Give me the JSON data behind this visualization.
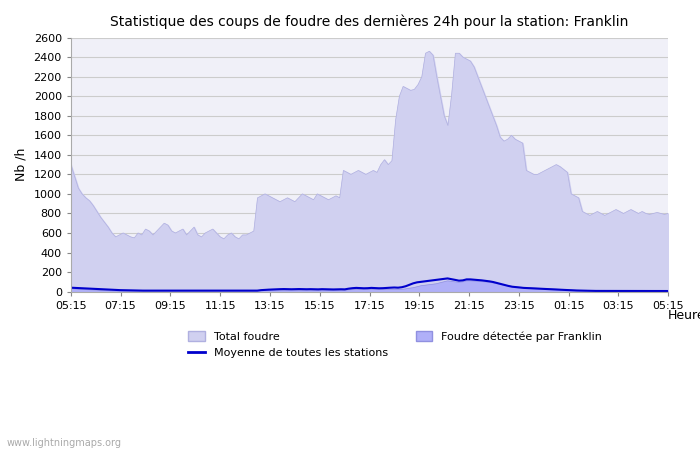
{
  "title": "Statistique des coups de foudre des dernières 24h pour la station: Franklin",
  "ylabel": "Nb /h",
  "xlabel": "Heure",
  "watermark": "www.lightningmaps.org",
  "ylim": [
    0,
    2600
  ],
  "yticks": [
    0,
    200,
    400,
    600,
    800,
    1000,
    1200,
    1400,
    1600,
    1800,
    2000,
    2200,
    2400,
    2600
  ],
  "xtick_labels": [
    "05:15",
    "07:15",
    "09:15",
    "11:15",
    "13:15",
    "15:15",
    "17:15",
    "19:15",
    "21:15",
    "23:15",
    "01:15",
    "03:15",
    "05:15"
  ],
  "bg_color": "#ffffff",
  "plot_bg_color": "#f0f0f8",
  "grid_color": "#cccccc",
  "total_foudre_color": "#d0d0f0",
  "total_foudre_edge": "#b0b0e0",
  "franklin_color": "#b0b0f8",
  "franklin_edge": "#9090e0",
  "moyenne_color": "#0000cc",
  "total_foudre_values": [
    1300,
    1180,
    1060,
    1000,
    960,
    930,
    880,
    820,
    760,
    710,
    660,
    600,
    560,
    580,
    600,
    580,
    560,
    550,
    600,
    580,
    640,
    620,
    580,
    620,
    660,
    700,
    680,
    620,
    600,
    620,
    640,
    580,
    620,
    660,
    580,
    560,
    600,
    620,
    640,
    600,
    560,
    540,
    580,
    600,
    560,
    540,
    580,
    580,
    600,
    620,
    960,
    980,
    1000,
    980,
    960,
    940,
    920,
    940,
    960,
    940,
    920,
    960,
    1000,
    980,
    960,
    940,
    1000,
    980,
    960,
    940,
    960,
    980,
    960,
    1240,
    1220,
    1200,
    1220,
    1240,
    1220,
    1200,
    1220,
    1240,
    1220,
    1300,
    1350,
    1300,
    1340,
    1760,
    2000,
    2100,
    2080,
    2060,
    2070,
    2120,
    2200,
    2440,
    2460,
    2420,
    2200,
    2000,
    1800,
    1700,
    2020,
    2440,
    2440,
    2400,
    2380,
    2360,
    2300,
    2200,
    2100,
    2000,
    1900,
    1800,
    1700,
    1580,
    1540,
    1560,
    1600,
    1560,
    1540,
    1520,
    1240,
    1220,
    1200,
    1200,
    1220,
    1240,
    1260,
    1280,
    1300,
    1280,
    1250,
    1220,
    1000,
    980,
    960,
    820,
    800,
    780,
    800,
    820,
    800,
    780,
    800,
    820,
    840,
    820,
    800,
    820,
    840,
    820,
    800,
    820,
    800,
    790,
    800,
    810,
    800,
    790,
    800
  ],
  "franklin_values": [
    30,
    28,
    25,
    22,
    20,
    18,
    16,
    14,
    12,
    10,
    8,
    7,
    6,
    5,
    5,
    5,
    5,
    5,
    5,
    5,
    6,
    6,
    6,
    5,
    5,
    5,
    5,
    5,
    5,
    5,
    5,
    5,
    5,
    5,
    5,
    5,
    5,
    5,
    5,
    5,
    5,
    5,
    5,
    5,
    5,
    5,
    5,
    5,
    5,
    5,
    10,
    12,
    14,
    15,
    16,
    15,
    14,
    15,
    16,
    15,
    14,
    15,
    16,
    15,
    14,
    13,
    15,
    14,
    13,
    12,
    13,
    14,
    13,
    18,
    20,
    22,
    21,
    20,
    21,
    22,
    21,
    20,
    21,
    22,
    22,
    22,
    22,
    24,
    28,
    35,
    40,
    50,
    60,
    65,
    70,
    75,
    80,
    90,
    100,
    110,
    105,
    100,
    95,
    100,
    110,
    110,
    108,
    105,
    102,
    100,
    95,
    88,
    80,
    72,
    65,
    58,
    52,
    48,
    45,
    42,
    40,
    38,
    36,
    34,
    32,
    30,
    28,
    26,
    24,
    22,
    20,
    18,
    16,
    15,
    14,
    13,
    12,
    11,
    10,
    10,
    10,
    9,
    9,
    8,
    8,
    8,
    8,
    8,
    8,
    8,
    8,
    8,
    8,
    8,
    8,
    8,
    8,
    8
  ],
  "moyenne_values": [
    40,
    38,
    36,
    34,
    32,
    30,
    28,
    26,
    24,
    22,
    20,
    18,
    16,
    15,
    14,
    13,
    12,
    11,
    10,
    10,
    10,
    10,
    10,
    10,
    10,
    10,
    10,
    10,
    10,
    10,
    10,
    10,
    10,
    10,
    10,
    10,
    10,
    10,
    10,
    10,
    10,
    10,
    10,
    10,
    10,
    10,
    10,
    10,
    10,
    10,
    15,
    18,
    20,
    22,
    24,
    25,
    26,
    25,
    24,
    25,
    26,
    25,
    24,
    25,
    24,
    23,
    25,
    24,
    23,
    22,
    23,
    24,
    23,
    30,
    35,
    38,
    36,
    34,
    35,
    38,
    36,
    34,
    35,
    38,
    40,
    42,
    40,
    45,
    55,
    70,
    85,
    95,
    100,
    105,
    110,
    115,
    120,
    125,
    130,
    135,
    128,
    120,
    112,
    115,
    125,
    125,
    122,
    118,
    115,
    110,
    105,
    98,
    88,
    78,
    68,
    58,
    50,
    46,
    42,
    38,
    36,
    34,
    32,
    30,
    28,
    26,
    24,
    22,
    20,
    18,
    16,
    14,
    12,
    11,
    10,
    9,
    8,
    8,
    7,
    7,
    7,
    7,
    6,
    6,
    6,
    6,
    6,
    6,
    6,
    6,
    6,
    6,
    6,
    6,
    6,
    6,
    6,
    6
  ],
  "legend_total": "Total foudre",
  "legend_moyenne": "Moyenne de toutes les stations",
  "legend_franklin": "Foudre détectée par Franklin"
}
